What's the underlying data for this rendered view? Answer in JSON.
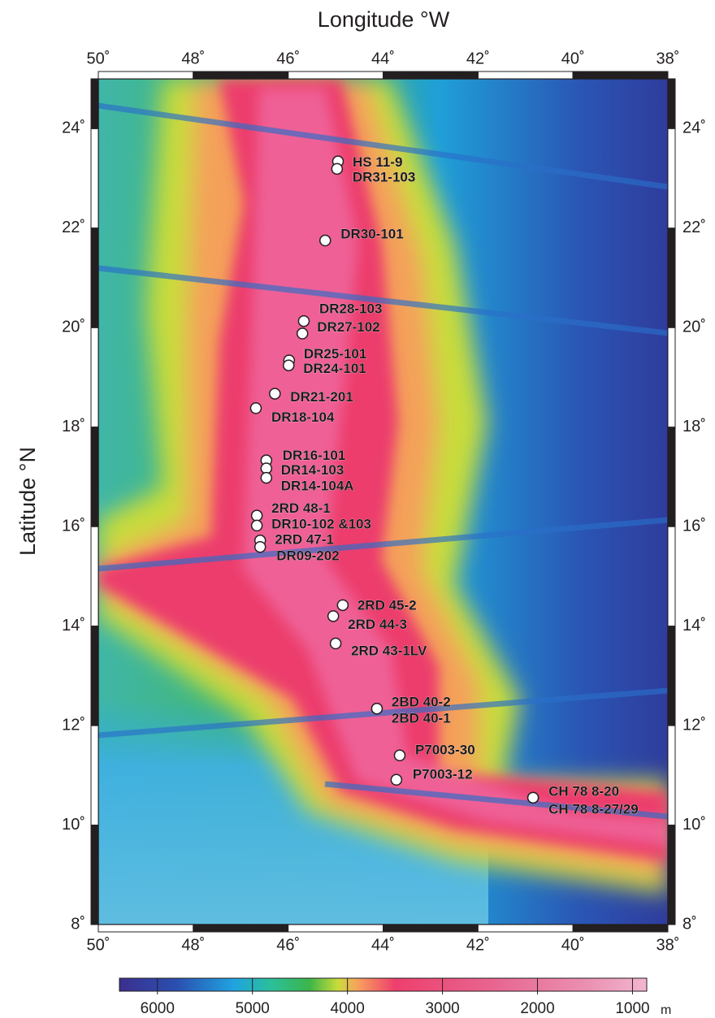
{
  "chart_data": {
    "type": "map",
    "xlabel": "Longitude °W",
    "ylabel": "Latitude °N",
    "xlim": [
      50,
      38
    ],
    "ylim": [
      8,
      25
    ],
    "xticks": [
      {
        "value": 50,
        "label": "50˚"
      },
      {
        "value": 48,
        "label": "48˚"
      },
      {
        "value": 46,
        "label": "46˚"
      },
      {
        "value": 44,
        "label": "44˚"
      },
      {
        "value": 42,
        "label": "42˚"
      },
      {
        "value": 40,
        "label": "40˚"
      },
      {
        "value": 38,
        "label": "38˚"
      }
    ],
    "yticks": [
      {
        "value": 8,
        "label": "8˚"
      },
      {
        "value": 10,
        "label": "10˚"
      },
      {
        "value": 12,
        "label": "12˚"
      },
      {
        "value": 14,
        "label": "14˚"
      },
      {
        "value": 16,
        "label": "16˚"
      },
      {
        "value": 18,
        "label": "18˚"
      },
      {
        "value": 20,
        "label": "20˚"
      },
      {
        "value": 22,
        "label": "22˚"
      },
      {
        "value": 24,
        "label": "24˚"
      }
    ],
    "samples": [
      {
        "label": "HS 11-9",
        "lon": 44.95,
        "lat": 23.34
      },
      {
        "label": "DR31-103",
        "lon": 44.97,
        "lat": 23.19
      },
      {
        "label": "DR30-101",
        "lon": 45.22,
        "lat": 21.75
      },
      {
        "label": "DR28-103",
        "lon": 45.67,
        "lat": 20.13
      },
      {
        "label": "DR27-102",
        "lon": 45.7,
        "lat": 19.88
      },
      {
        "label": "DR25-101",
        "lon": 45.98,
        "lat": 19.34
      },
      {
        "label": "DR24-101",
        "lon": 45.99,
        "lat": 19.24
      },
      {
        "label": "DR21-201",
        "lon": 46.28,
        "lat": 18.67
      },
      {
        "label": "DR18-104",
        "lon": 46.68,
        "lat": 18.38
      },
      {
        "label": "DR16-101",
        "lon": 46.46,
        "lat": 17.33
      },
      {
        "label": "DR14-103",
        "lon": 46.46,
        "lat": 17.17
      },
      {
        "label": "DR14-104A",
        "lon": 46.46,
        "lat": 16.98
      },
      {
        "label": "2RD 48-1",
        "lon": 46.66,
        "lat": 16.22
      },
      {
        "label": "DR10-102 &103",
        "lon": 46.66,
        "lat": 16.02
      },
      {
        "label": "2RD 47-1",
        "lon": 46.59,
        "lat": 15.72
      },
      {
        "label": "DR09-202",
        "lon": 46.59,
        "lat": 15.59
      },
      {
        "label": "2RD 45-2",
        "lon": 44.85,
        "lat": 14.42
      },
      {
        "label": "2RD 44-3",
        "lon": 45.05,
        "lat": 14.2
      },
      {
        "label": "2RD 43-1LV",
        "lon": 45.0,
        "lat": 13.65
      },
      {
        "label": "2BD 40-2",
        "lon": 44.13,
        "lat": 12.34
      },
      {
        "label": "2BD 40-1",
        "lon": 44.13,
        "lat": 12.34
      },
      {
        "label": "P7003-30",
        "lon": 43.65,
        "lat": 11.4
      },
      {
        "label": "P7003-12",
        "lon": 43.72,
        "lat": 10.91
      },
      {
        "label": "CH 78 8-20",
        "lon": 40.84,
        "lat": 10.55
      },
      {
        "label": "CH 78 8-27/29",
        "lon": 40.84,
        "lat": 10.55
      }
    ],
    "colorbar": {
      "clim": [
        6400,
        850
      ],
      "ticks": [
        6000,
        5000,
        4000,
        3000,
        2000,
        1000
      ],
      "unit": "m",
      "colormap": [
        {
          "value": 6400,
          "color": "#3b2f8f"
        },
        {
          "value": 5800,
          "color": "#2b4fb0"
        },
        {
          "value": 5200,
          "color": "#1fa3e0"
        },
        {
          "value": 4800,
          "color": "#2bbf9a"
        },
        {
          "value": 4400,
          "color": "#3cb54a"
        },
        {
          "value": 4100,
          "color": "#c9dc3a"
        },
        {
          "value": 3900,
          "color": "#f7a35c"
        },
        {
          "value": 3500,
          "color": "#ee3f6d"
        },
        {
          "value": 2500,
          "color": "#e8648f"
        },
        {
          "value": 1500,
          "color": "#ea8fb0"
        },
        {
          "value": 850,
          "color": "#f2b6cf"
        }
      ]
    }
  }
}
